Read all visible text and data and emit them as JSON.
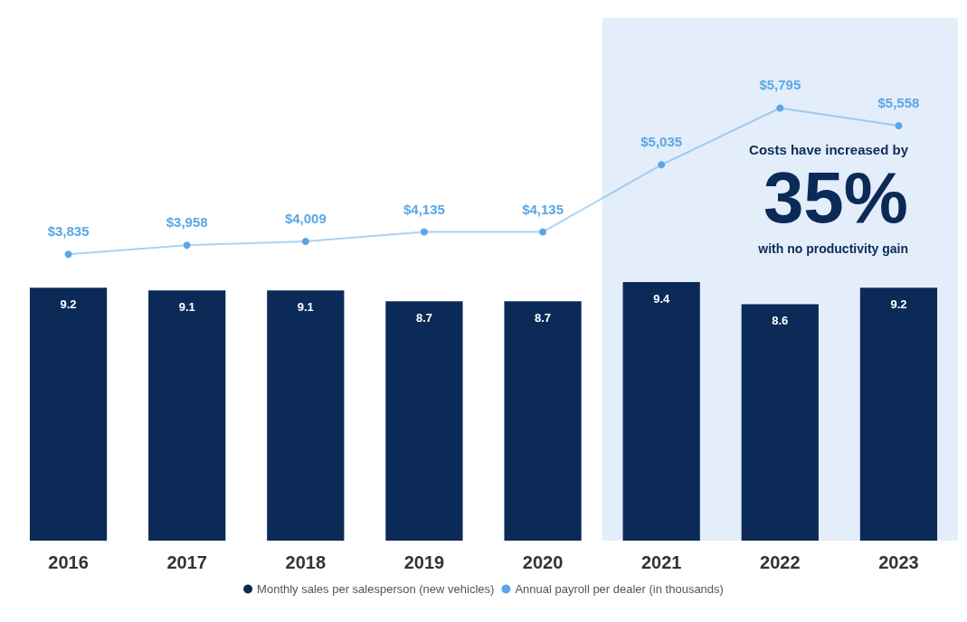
{
  "chart_data": {
    "type": "bar",
    "categories": [
      "2016",
      "2017",
      "2018",
      "2019",
      "2020",
      "2021",
      "2022",
      "2023"
    ],
    "series": [
      {
        "name": "Monthly sales per salesperson (new vehicles)",
        "color": "#0b2a57",
        "values": [
          9.2,
          9.1,
          9.1,
          8.7,
          8.7,
          9.4,
          8.6,
          9.2
        ]
      },
      {
        "name": "Annual payroll per dealer (in thousands)",
        "type": "line",
        "axis": "y2",
        "color": "#5aa6e6",
        "values": [
          3835,
          3958,
          4009,
          4135,
          4135,
          5035,
          5795,
          5558
        ],
        "value_labels": [
          "$3,835",
          "$3,958",
          "$4,009",
          "$4,135",
          "$4,135",
          "$5,035",
          "$5,795",
          "$5,558"
        ]
      }
    ],
    "data_labels": true,
    "marker": "circle",
    "legend": "bottom",
    "ylim": [
      0,
      19
    ],
    "y2lim": [
      0,
      7000
    ],
    "tick_labels": "x",
    "bands": [
      {
        "axis": "x",
        "from": "2021",
        "to": "2023",
        "color": "#e3eefa"
      }
    ],
    "annotations": [
      "Costs have increased by",
      "35%",
      "with no productivity gain"
    ]
  }
}
